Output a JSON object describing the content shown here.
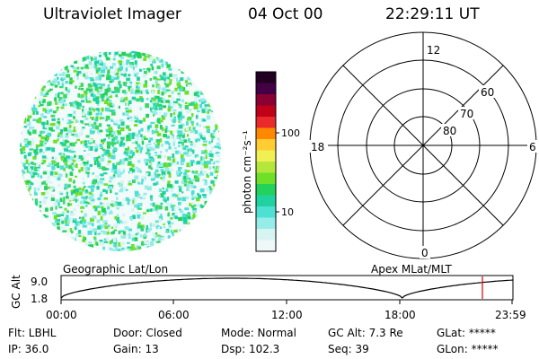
{
  "header": {
    "title": "Ultraviolet Imager",
    "date": "04 Oct 00",
    "time": "22:29:11 UT"
  },
  "colorbar": {
    "unit_label": "photon cm⁻²s⁻¹",
    "ticks": [
      "100",
      "10"
    ],
    "colors": [
      "#220022",
      "#440044",
      "#8a0033",
      "#c00018",
      "#ea2a2a",
      "#ff8800",
      "#ffcc33",
      "#f0f055",
      "#b4e63c",
      "#6ee02a",
      "#22d25a",
      "#20d2a0",
      "#4ee0d2",
      "#96ece8",
      "#d8f4f2",
      "#eef8f8"
    ]
  },
  "polar_grid": {
    "mlt_labels": {
      "top": "12",
      "left": "18",
      "right": "6",
      "bottom": "0"
    },
    "lat_labels": [
      "60",
      "70",
      "80"
    ]
  },
  "timeline": {
    "left_title": "Geographic Lat/Lon",
    "right_title": "Apex MLat/MLT",
    "y_axis_label": "GC Alt",
    "y_ticks": [
      "9.0",
      "1.8"
    ],
    "x_ticks": [
      "00:00",
      "06:00",
      "12:00",
      "18:00",
      "23:59"
    ],
    "marker_color": "#e00000"
  },
  "info": {
    "filter": "Flt: LBHL",
    "ip": "IP: 36.0",
    "door": "Door: Closed",
    "gain": "Gain: 13",
    "mode": "Mode: Normal",
    "dsp": "Dsp:  102.3",
    "gc_alt": "GC Alt: 7.3 Re",
    "seq": "Seq: 39",
    "glat": "GLat: *****",
    "glon": "GLon: *****"
  }
}
